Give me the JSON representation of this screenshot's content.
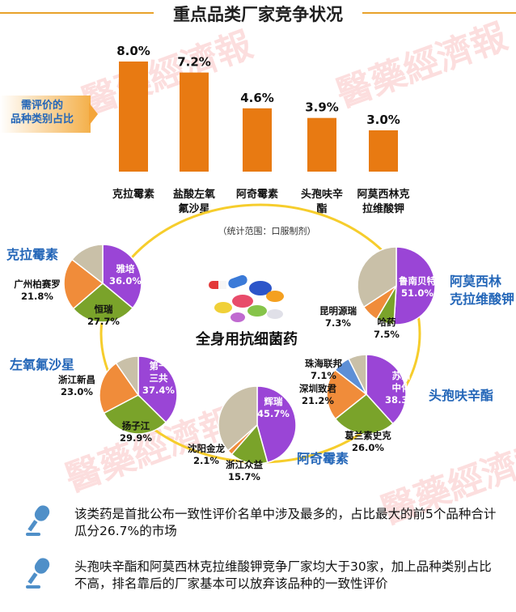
{
  "title": "重点品类厂家竞争状况",
  "watermark": "醫藥經濟報",
  "chart_data": {
    "type": "bar",
    "bar_color": "#e87a12",
    "side_label": "需评价的\n品种类别占比",
    "scope_note": "（统计范围：口服制剂）",
    "center_label": "全身用抗细菌药",
    "categories": [
      "克拉霉素",
      "盐酸左氧\n氟沙星",
      "阿奇霉素",
      "头孢呋辛\n酯",
      "阿莫西林克\n拉维酸钾"
    ],
    "values": [
      8.0,
      7.2,
      4.6,
      3.9,
      3.0
    ],
    "value_labels": [
      "8.0%",
      "7.2%",
      "4.6%",
      "3.9%",
      "3.0%"
    ],
    "pies": [
      {
        "name": "克拉霉素",
        "slices": [
          {
            "label": "雅培",
            "pct_label": "36.0%",
            "value": 36.0,
            "color": "#9a45d6"
          },
          {
            "label": "恒瑞",
            "pct_label": "27.7%",
            "value": 27.7,
            "color": "#7aa32a"
          },
          {
            "label": "广州柏赛罗",
            "pct_label": "21.8%",
            "value": 21.8,
            "color": "#f08c3a"
          },
          {
            "label": "",
            "pct_label": "",
            "value": 14.5,
            "color": "#c9c0a8"
          }
        ]
      },
      {
        "name": "左氧氟沙星",
        "slices": [
          {
            "label": "第一\n三共",
            "pct_label": "37.4%",
            "value": 37.4,
            "color": "#9a45d6"
          },
          {
            "label": "扬子江",
            "pct_label": "29.9%",
            "value": 29.9,
            "color": "#7aa32a"
          },
          {
            "label": "浙江新昌",
            "pct_label": "23.0%",
            "value": 23.0,
            "color": "#f08c3a"
          },
          {
            "label": "",
            "pct_label": "",
            "value": 9.7,
            "color": "#c9c0a8"
          }
        ]
      },
      {
        "name": "阿奇霉素",
        "slices": [
          {
            "label": "辉瑞",
            "pct_label": "45.7%",
            "value": 45.7,
            "color": "#9a45d6"
          },
          {
            "label": "浙江众益",
            "pct_label": "15.7%",
            "value": 15.7,
            "color": "#7aa32a"
          },
          {
            "label": "沈阳金龙",
            "pct_label": "2.1%",
            "value": 2.1,
            "color": "#f08c3a"
          },
          {
            "label": "",
            "pct_label": "",
            "value": 36.5,
            "color": "#c9c0a8"
          }
        ]
      },
      {
        "name": "头孢呋辛酯",
        "slices": [
          {
            "label": "苏州\n中化",
            "pct_label": "38.3%",
            "value": 38.3,
            "color": "#9a45d6"
          },
          {
            "label": "葛兰素史克",
            "pct_label": "26.0%",
            "value": 26.0,
            "color": "#7aa32a"
          },
          {
            "label": "深圳致君",
            "pct_label": "21.2%",
            "value": 21.2,
            "color": "#f08c3a"
          },
          {
            "label": "珠海联邦",
            "pct_label": "7.1%",
            "value": 7.1,
            "color": "#5d8fd6"
          },
          {
            "label": "",
            "pct_label": "",
            "value": 7.4,
            "color": "#c9c0a8"
          }
        ]
      },
      {
        "name": "阿莫西林\n克拉维酸钾",
        "slices": [
          {
            "label": "鲁南贝特",
            "pct_label": "51.0%",
            "value": 51.0,
            "color": "#9a45d6"
          },
          {
            "label": "哈药",
            "pct_label": "7.5%",
            "value": 7.5,
            "color": "#7aa32a"
          },
          {
            "label": "昆明源瑞",
            "pct_label": "7.3%",
            "value": 7.3,
            "color": "#f08c3a"
          },
          {
            "label": "",
            "pct_label": "",
            "value": 34.2,
            "color": "#c9c0a8"
          }
        ]
      }
    ]
  },
  "notes": [
    "该类药是首批公布一致性评价名单中涉及最多的，占比最大的前5个品种合计瓜分26.7%的市场",
    "头孢呋辛酯和阿莫西林克拉维酸钾竞争厂家均大于30家，加上品种类别占比不高，排名靠后的厂家基本可以放弃该品种的一致性评价"
  ]
}
